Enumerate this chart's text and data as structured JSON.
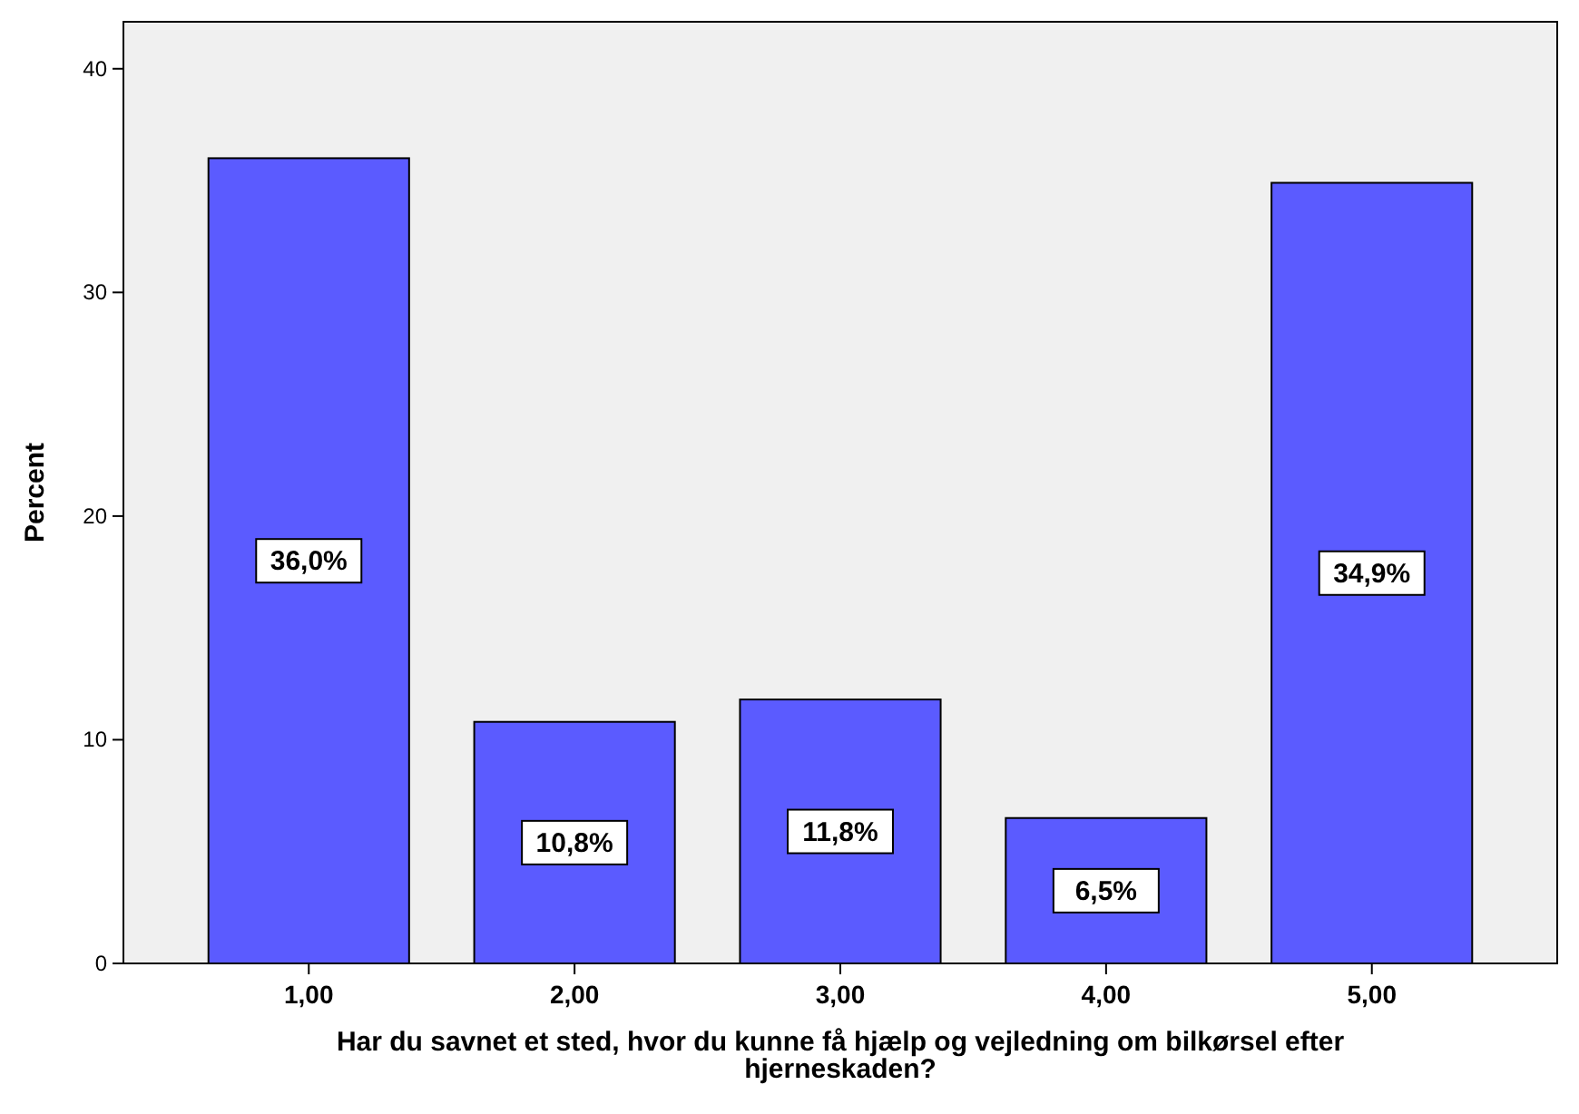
{
  "chart_data": {
    "type": "bar",
    "ylabel": "Percent",
    "xlabel": "Har du savnet et sted, hvor du kunne få hjælp og vejledning om bilkørsel efter hjerneskaden?",
    "categories": [
      "1,00",
      "2,00",
      "3,00",
      "4,00",
      "5,00"
    ],
    "values": [
      36.0,
      10.8,
      11.8,
      6.5,
      34.9
    ],
    "value_labels": [
      "36,0%",
      "10,8%",
      "11,8%",
      "6,5%",
      "34,9%"
    ],
    "color": "#5b5bff",
    "ylim": [
      0,
      42.1
    ],
    "yticks": [
      0,
      10,
      20,
      30,
      40
    ],
    "grid": false
  }
}
